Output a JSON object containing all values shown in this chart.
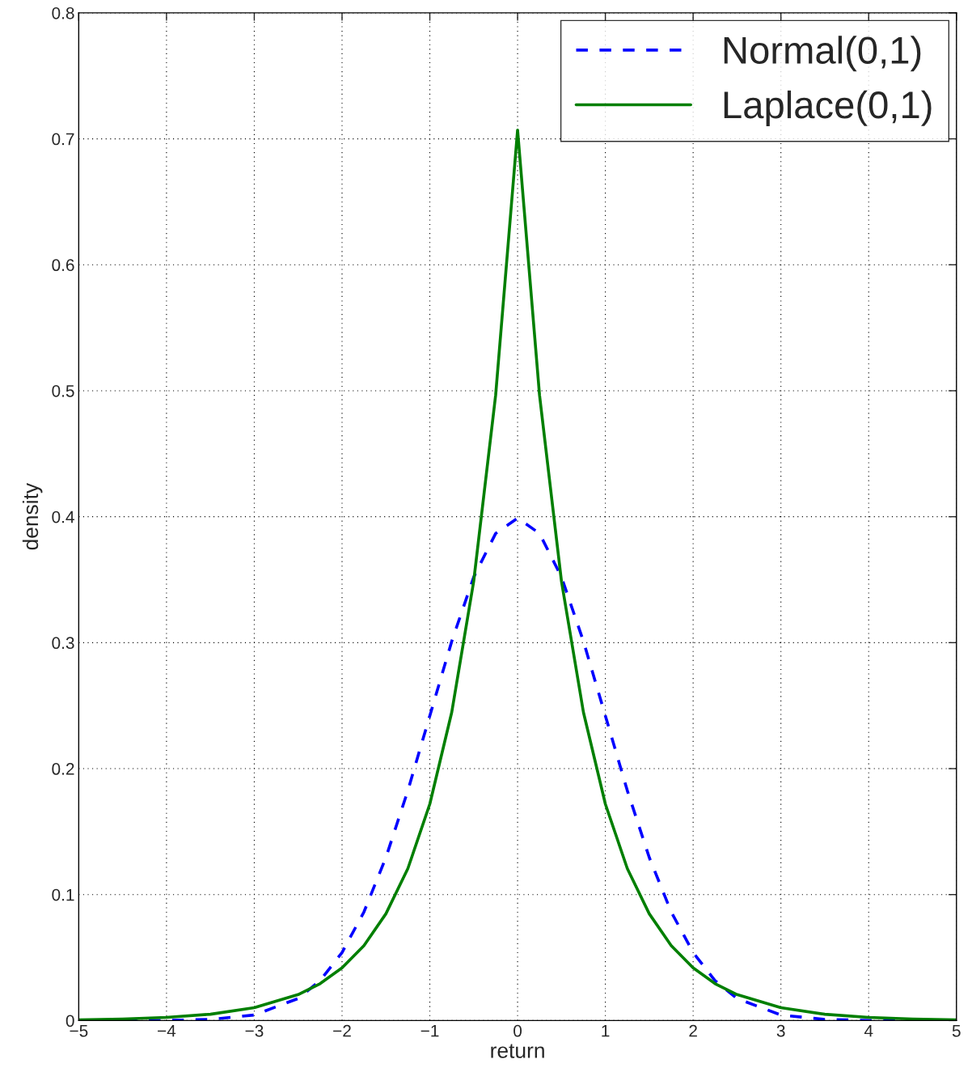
{
  "chart_data": {
    "type": "line",
    "xlabel": "return",
    "ylabel": "density",
    "x": [
      -5,
      -4.5,
      -4,
      -3.5,
      -3,
      -2.5,
      -2.25,
      -2,
      -1.75,
      -1.5,
      -1.25,
      -1,
      -0.75,
      -0.5,
      -0.25,
      0,
      0.25,
      0.5,
      0.75,
      1,
      1.25,
      1.5,
      1.75,
      2,
      2.25,
      2.5,
      3,
      3.5,
      4,
      4.5,
      5
    ],
    "series": [
      {
        "name": "Normal(0,1)",
        "color": "#0000ff",
        "line_style": "dashed",
        "values": [
          0,
          0,
          0.0001,
          0.0009,
          0.0044,
          0.0175,
          0.0317,
          0.054,
          0.0863,
          0.1295,
          0.1826,
          0.242,
          0.3011,
          0.3521,
          0.3867,
          0.3989,
          0.3867,
          0.3521,
          0.3011,
          0.242,
          0.1826,
          0.1295,
          0.0863,
          0.054,
          0.0317,
          0.0175,
          0.0044,
          0.0009,
          0.0001,
          0,
          0
        ]
      },
      {
        "name": "Laplace(0,1)",
        "color": "#007f00",
        "line_style": "solid",
        "values": [
          0.0006,
          0.0012,
          0.0025,
          0.005,
          0.0102,
          0.0206,
          0.0293,
          0.0418,
          0.0595,
          0.0848,
          0.1207,
          0.1719,
          0.2448,
          0.3487,
          0.4965,
          0.707,
          0.4965,
          0.3487,
          0.2448,
          0.1719,
          0.1207,
          0.0848,
          0.0595,
          0.0418,
          0.0293,
          0.0206,
          0.0102,
          0.005,
          0.0025,
          0.0012,
          0.0006
        ]
      }
    ],
    "xlim": [
      -5,
      5
    ],
    "ylim": [
      0,
      0.8
    ],
    "xticks": [
      {
        "value": -5,
        "label": "−5"
      },
      {
        "value": -4,
        "label": "−4"
      },
      {
        "value": -3,
        "label": "−3"
      },
      {
        "value": -2,
        "label": "−2"
      },
      {
        "value": -1,
        "label": "−1"
      },
      0,
      1,
      2,
      3,
      4,
      5
    ],
    "yticks": [
      0,
      0.1,
      0.2,
      0.3,
      0.4,
      0.5,
      0.6,
      0.7,
      0.8
    ],
    "grid": true,
    "legend": "top right",
    "marker": "none"
  }
}
